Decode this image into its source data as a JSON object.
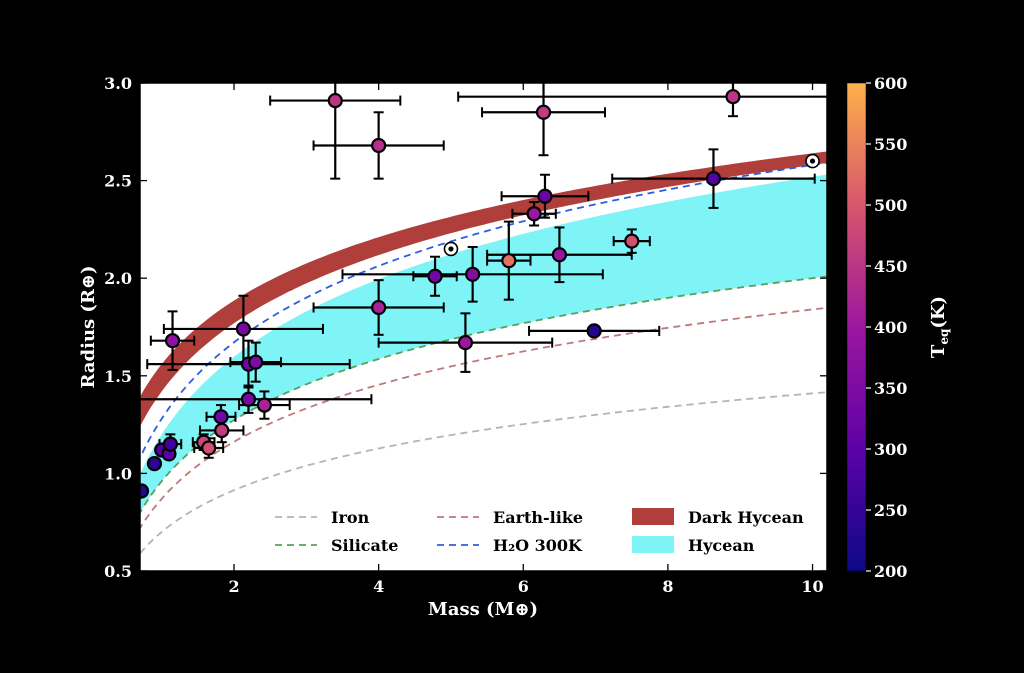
{
  "chart_data": {
    "type": "scatter",
    "xlabel": "Mass (M⊕)",
    "ylabel": "Radius (R⊕)",
    "xlim": [
      0.7,
      10.2
    ],
    "ylim": [
      0.5,
      3.0
    ],
    "xticks": [
      "2",
      "4",
      "6",
      "8",
      "10"
    ],
    "yticks": [
      "0.5",
      "1.0",
      "1.5",
      "2.0",
      "2.5",
      "3.0"
    ],
    "colorbar": {
      "label_main": "T",
      "label_sub": "eq",
      "label_unit": "(K)",
      "range": [
        200,
        600
      ],
      "ticks": [
        "200",
        "250",
        "300",
        "350",
        "400",
        "450",
        "500",
        "550",
        "600"
      ]
    },
    "legend": [
      {
        "key": "iron",
        "label": "Iron",
        "style": "dashed",
        "color": "#b4b4b4"
      },
      {
        "key": "earth",
        "label": "Earth-like",
        "style": "dashed",
        "color": "#c0787a"
      },
      {
        "key": "dark",
        "label": "Dark Hycean",
        "style": "patch",
        "color": "#b03e3a"
      },
      {
        "key": "silicate",
        "label": "Silicate",
        "style": "dashed",
        "color": "#5aa05a"
      },
      {
        "key": "h2o",
        "label": "H₂O 300K",
        "style": "dashed",
        "color": "#2e5de0"
      },
      {
        "key": "hycean",
        "label": "Hycean",
        "style": "patch",
        "color": "#7ef4f6"
      }
    ],
    "curves": {
      "iron": {
        "a": 0.7,
        "b": 1.41
      },
      "earth": {
        "a": 0.87,
        "b": 1.84
      },
      "silicate": {
        "a": 0.96,
        "b": 2.0
      },
      "h2o": {
        "a": 1.28,
        "b": 2.58
      },
      "dark_lower": {
        "a": 1.42,
        "b": 2.58
      },
      "dark_upper": {
        "a": 1.56,
        "b": 2.64
      },
      "hycean_upper": {
        "a": 1.2,
        "b": 2.52
      }
    },
    "points": [
      {
        "m": 0.72,
        "r": 0.91,
        "t": 230
      },
      {
        "m": 0.9,
        "r": 1.05,
        "t": 240
      },
      {
        "m": 1.0,
        "r": 1.12,
        "t": 290
      },
      {
        "m": 1.1,
        "r": 1.1,
        "t": 300
      },
      {
        "m": 1.12,
        "r": 1.15,
        "t": 260,
        "xerr": 0.15,
        "yerr": 0.05
      },
      {
        "m": 1.15,
        "r": 1.68,
        "t": 380,
        "xerr": 0.3,
        "yerr": 0.15
      },
      {
        "m": 1.58,
        "r": 1.16,
        "t": 480,
        "xerr": 0.15,
        "yerr": 0.04
      },
      {
        "m": 1.65,
        "r": 1.13,
        "t": 490,
        "xerr": 0.2,
        "yerr": 0.05
      },
      {
        "m": 1.82,
        "r": 1.29,
        "t": 330,
        "xerr": 0.2,
        "yerr": 0.06
      },
      {
        "m": 1.83,
        "r": 1.22,
        "t": 460,
        "xerr": 0.3,
        "yerr": 0.06
      },
      {
        "m": 2.13,
        "r": 1.74,
        "t": 340,
        "xerr": 1.1,
        "yerr": 0.17
      },
      {
        "m": 2.2,
        "r": 1.56,
        "t": 330,
        "xerr": 1.4,
        "yerr": 0.12
      },
      {
        "m": 2.2,
        "r": 1.38,
        "t": 340,
        "xerr": 1.7,
        "yerr": 0.07
      },
      {
        "m": 2.3,
        "r": 1.57,
        "t": 350,
        "xerr": 0.35,
        "yerr": 0.1
      },
      {
        "m": 2.42,
        "r": 1.35,
        "t": 420,
        "xerr": 0.35,
        "yerr": 0.07
      },
      {
        "m": 3.4,
        "r": 2.91,
        "t": 450,
        "xerr": 0.9,
        "yerr": 0.4
      },
      {
        "m": 4.0,
        "r": 2.68,
        "t": 440,
        "xerr": 0.9,
        "yerr": 0.17
      },
      {
        "m": 4.0,
        "r": 1.85,
        "t": 420,
        "xerr": 0.9,
        "yerr": 0.14
      },
      {
        "m": 4.78,
        "r": 2.01,
        "t": 330,
        "xerr": 0.3,
        "yerr": 0.1
      },
      {
        "m": 5.0,
        "r": 2.15,
        "t": 0,
        "solar": true
      },
      {
        "m": 5.2,
        "r": 1.67,
        "t": 400,
        "xerr": 1.2,
        "yerr": 0.15
      },
      {
        "m": 5.3,
        "r": 2.02,
        "t": 360,
        "xerr": 1.8,
        "yerr": 0.14
      },
      {
        "m": 5.8,
        "r": 2.09,
        "t": 530,
        "xerr": 0.3,
        "yerr": 0.2
      },
      {
        "m": 6.15,
        "r": 2.33,
        "t": 400,
        "xerr": 0.3,
        "yerr": 0.06
      },
      {
        "m": 6.28,
        "r": 2.85,
        "t": 460,
        "xerr": 0.85,
        "yerr": 0.22
      },
      {
        "m": 6.3,
        "r": 2.42,
        "t": 320,
        "xerr": 0.6,
        "yerr": 0.11
      },
      {
        "m": 6.5,
        "r": 2.12,
        "t": 390,
        "xerr": 1.0,
        "yerr": 0.14
      },
      {
        "m": 6.98,
        "r": 1.73,
        "t": 230,
        "xerr": 0.9,
        "yerr": 0.01
      },
      {
        "m": 7.5,
        "r": 2.19,
        "t": 490,
        "xerr": 0.25,
        "yerr": 0.06
      },
      {
        "m": 8.63,
        "r": 2.51,
        "t": 290,
        "xerr": 1.4,
        "yerr": 0.15
      },
      {
        "m": 8.9,
        "r": 2.93,
        "t": 450,
        "xerr": 3.8,
        "yerr": 0.1
      },
      {
        "m": 10.0,
        "r": 2.6,
        "t": 0,
        "solar": true
      }
    ]
  }
}
